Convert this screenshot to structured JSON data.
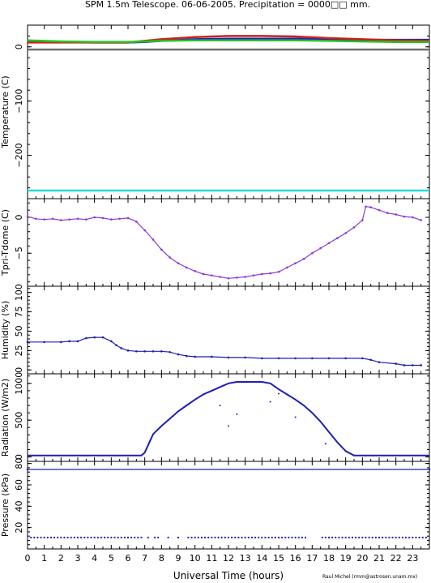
{
  "figure": {
    "title": "SPM 1.5m Telescope. 06-06-2005. Precipitation = 0000□□ mm.",
    "xlabel": "Universal Time (hours)",
    "credit": "Raul Michel (rmm@astrosen.unam.mx)"
  },
  "chart_data": [
    {
      "type": "line",
      "ylabel": "Temperature (C)",
      "xlim": [
        0,
        24
      ],
      "ylim": [
        -280,
        40
      ],
      "yticks": [
        0,
        -100,
        -200
      ],
      "x_ticks": [
        0,
        1,
        2,
        3,
        4,
        5,
        6,
        7,
        8,
        9,
        10,
        11,
        12,
        13,
        14,
        15,
        16,
        17,
        18,
        19,
        20,
        21,
        22,
        23
      ],
      "series": [
        {
          "color": "#1e1ec8",
          "x": [
            0,
            2,
            4,
            6,
            7,
            8,
            10,
            12,
            14,
            16,
            18,
            20,
            22,
            24
          ],
          "y": [
            10,
            9,
            8,
            8,
            9,
            11,
            14,
            15,
            15,
            15,
            14,
            13,
            13,
            13
          ]
        },
        {
          "color": "#d21e1e",
          "x": [
            0,
            2,
            4,
            6,
            7,
            8,
            10,
            12,
            14,
            16,
            18,
            20,
            22,
            24
          ],
          "y": [
            8,
            8,
            8,
            8,
            11,
            14,
            18,
            20,
            20,
            19,
            16,
            14,
            12,
            11
          ]
        },
        {
          "color": "#1ec81e",
          "x": [
            0,
            2,
            4,
            6,
            7,
            8,
            10,
            12,
            14,
            16,
            18,
            20,
            22,
            24
          ],
          "y": [
            12,
            10,
            9,
            9,
            10,
            11,
            12,
            12,
            12,
            12,
            11,
            10,
            9,
            9
          ]
        },
        {
          "color": "#707070",
          "x": [
            0,
            24
          ],
          "y": [
            -5,
            -5
          ]
        },
        {
          "color": "#28dcdc",
          "x": [
            0,
            24
          ],
          "y": [
            -265,
            -265
          ]
        }
      ]
    },
    {
      "type": "scatter",
      "ylabel": "Tpri-Tdome (C)",
      "xlim": [
        0,
        24
      ],
      "ylim": [
        -9.6,
        2.6
      ],
      "yticks": [
        0,
        -5
      ],
      "color": "#8a3ad8",
      "x": [
        0,
        0.5,
        1,
        1.5,
        2,
        2.5,
        3,
        3.5,
        4,
        4.5,
        5,
        5.5,
        6,
        6.5,
        7,
        7.5,
        8,
        8.5,
        9,
        9.5,
        10,
        10.5,
        11,
        11.5,
        12,
        12.5,
        13,
        13.5,
        14,
        14.5,
        15,
        15.5,
        16,
        16.5,
        17,
        17.5,
        18,
        18.5,
        19,
        19.5,
        20,
        20.2,
        20.5,
        21,
        21.5,
        22,
        22.5,
        23,
        23.5
      ],
      "y": [
        0.1,
        -0.2,
        -0.3,
        -0.2,
        -0.4,
        -0.3,
        -0.2,
        -0.3,
        0,
        -0.1,
        -0.3,
        -0.2,
        -0.1,
        -0.6,
        -1.8,
        -3.1,
        -4.5,
        -5.6,
        -6.4,
        -7.0,
        -7.5,
        -7.9,
        -8.1,
        -8.3,
        -8.5,
        -8.4,
        -8.3,
        -8.1,
        -7.9,
        -7.8,
        -7.6,
        -7.0,
        -6.4,
        -5.8,
        -5.0,
        -4.3,
        -3.6,
        -2.9,
        -2.2,
        -1.4,
        -0.4,
        1.5,
        1.4,
        1.0,
        0.6,
        0.4,
        0.1,
        0,
        -0.4
      ]
    },
    {
      "type": "scatter",
      "ylabel": "Humidity (%)",
      "xlim": [
        0,
        24
      ],
      "ylim": [
        -5,
        108
      ],
      "yticks": [
        0,
        25,
        50,
        75,
        100
      ],
      "color": "#1e1eb4",
      "x": [
        0,
        1,
        2,
        2.5,
        3,
        3.5,
        4,
        4.5,
        5,
        5.3,
        5.6,
        6,
        6.5,
        7,
        7.5,
        8,
        8.5,
        9,
        9.5,
        10,
        11,
        12,
        13,
        14,
        15,
        16,
        17,
        18,
        19,
        20,
        20.5,
        21,
        22,
        22.5,
        23,
        23.5
      ],
      "y": [
        36,
        36,
        36,
        37,
        37,
        41,
        42,
        42,
        37,
        32,
        28,
        25,
        24,
        24,
        24,
        24,
        23,
        20,
        18,
        17,
        17,
        16,
        16,
        15,
        15,
        15,
        15,
        15,
        15,
        15,
        13,
        10,
        8,
        6,
        6,
        6
      ]
    },
    {
      "type": "line",
      "ylabel": "Radiation (W/m2)",
      "xlim": [
        0,
        24
      ],
      "ylim": [
        -60,
        1130
      ],
      "yticks": [
        0,
        500,
        1000
      ],
      "color": "#1e1eb4",
      "x": [
        0,
        6.8,
        7,
        7.5,
        8,
        8.5,
        9,
        9.5,
        10,
        10.5,
        11,
        11.5,
        12,
        12.5,
        13,
        13.5,
        14,
        14.5,
        15,
        15.5,
        16,
        16.5,
        17,
        17.5,
        18,
        18.5,
        19,
        19.5,
        24
      ],
      "y": [
        20,
        20,
        60,
        310,
        420,
        520,
        620,
        700,
        780,
        850,
        900,
        950,
        1000,
        1020,
        1020,
        1020,
        1020,
        1000,
        920,
        850,
        780,
        700,
        600,
        480,
        340,
        200,
        80,
        20,
        20
      ]
    },
    {
      "type": "scatter",
      "ylabel": "Pressure (kPa)",
      "xlim": [
        0,
        24
      ],
      "ylim": [
        0,
        82
      ],
      "yticks": [
        20,
        40,
        60,
        80
      ],
      "color": "#1e1eb4",
      "x": [
        0,
        24
      ],
      "y": [
        74.5,
        74.5
      ],
      "low_x": [
        0.2,
        0.4,
        0.6,
        0.8,
        1,
        1.2,
        1.4,
        1.6,
        1.8,
        2,
        2.2,
        2.4,
        2.6,
        2.8,
        3,
        3.2,
        3.4,
        3.6,
        3.8,
        4,
        4.2,
        4.4,
        4.6,
        4.8,
        5,
        5.2,
        5.4,
        5.6,
        5.8,
        6,
        6.2,
        6.4,
        6.6,
        6.8,
        7.2,
        7.6,
        7.8,
        8.4,
        9,
        9.6,
        9.8,
        10,
        10.2,
        10.4,
        10.6,
        10.8,
        11,
        11.2,
        11.4,
        11.6,
        11.8,
        12,
        12.2,
        12.4,
        12.6,
        12.8,
        13,
        13.2,
        13.4,
        13.6,
        13.8,
        14,
        14.2,
        14.4,
        14.6,
        14.8,
        15,
        15.2,
        15.4,
        15.6,
        15.8,
        16,
        16.2,
        16.4,
        16.6,
        17.6,
        17.8,
        18,
        18.2,
        18.4,
        18.6,
        18.8,
        19,
        19.2,
        19.4,
        19.6,
        19.8,
        20,
        20.2,
        20.4,
        20.6,
        20.8,
        21,
        21.2,
        21.4,
        21.6,
        21.8,
        22,
        22.2,
        22.4,
        22.6,
        22.8,
        23,
        23.2,
        23.4,
        23.6,
        23.8
      ],
      "low_y": 10.7
    }
  ]
}
